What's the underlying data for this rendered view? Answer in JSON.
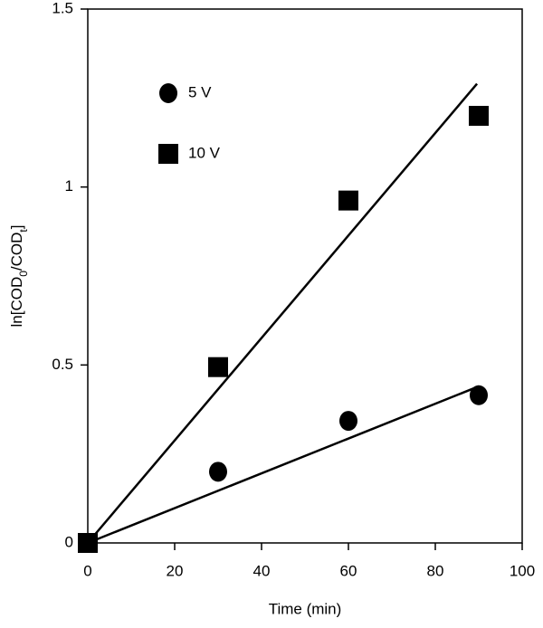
{
  "chart_data": {
    "type": "scatter",
    "xlabel": "Time (min)",
    "ylabel_parts": [
      "ln[COD",
      "0",
      "/COD",
      "t",
      "]"
    ],
    "xlim": [
      0,
      100
    ],
    "xticks": [
      0,
      20,
      40,
      60,
      80,
      100
    ],
    "ylim": [
      0,
      1.5
    ],
    "yticks": [
      0,
      0.5,
      1,
      1.5
    ],
    "legend": "upper left",
    "series": [
      {
        "name": "5 V",
        "color": "#000000",
        "marker": "circle",
        "x": [
          0,
          30,
          60,
          90
        ],
        "values": [
          0,
          0.2,
          0.343,
          0.415
        ],
        "fit": {
          "x": [
            0,
            90
          ],
          "values": [
            0,
            0.44
          ]
        }
      },
      {
        "name": "10 V",
        "color": "#000000",
        "marker": "square",
        "x": [
          0,
          30,
          60,
          90
        ],
        "values": [
          0,
          0.494,
          0.962,
          1.2
        ],
        "fit": {
          "x": [
            0,
            89.6
          ],
          "values": [
            0,
            1.29
          ]
        }
      }
    ]
  }
}
